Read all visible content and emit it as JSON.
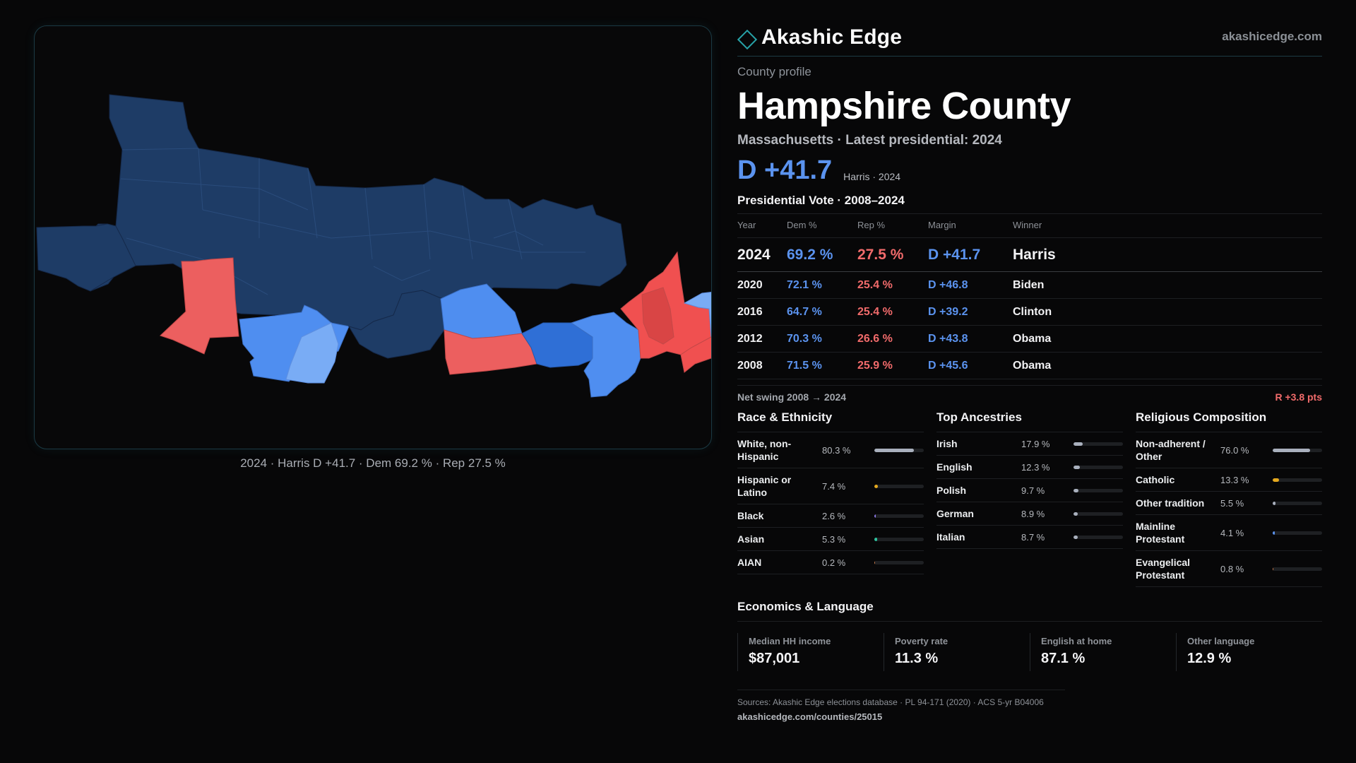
{
  "brand": {
    "name": "Akashic Edge",
    "url": "akashicedge.com",
    "accent": "#27a3a8"
  },
  "profile": {
    "eyebrow": "County profile",
    "county": "Hampshire County",
    "subline": "Massachusetts · Latest presidential: 2024",
    "headline_margin": "D +41.7",
    "headline_sub": "Harris · 2024"
  },
  "map": {
    "caption": "2024 · Harris D +41.7 · Dem 69.2 % · Rep 27.5 %",
    "colors": {
      "safe_dem": "#1e3c66",
      "likely_dem": "#2f6fd6",
      "lean_dem": "#4f8ef0",
      "tilt_dem": "#79acf5",
      "lean_rep": "#f05050",
      "likely_rep": "#ec5f5f"
    }
  },
  "votes": {
    "title": "Presidential Vote · 2008–2024",
    "headers": {
      "year": "Year",
      "dem": "Dem %",
      "rep": "Rep %",
      "margin": "Margin",
      "winner": "Winner"
    },
    "rows": [
      {
        "year": "2024",
        "dem": "69.2 %",
        "rep": "27.5 %",
        "margin": "D +41.7",
        "winner": "Harris"
      },
      {
        "year": "2020",
        "dem": "72.1 %",
        "rep": "25.4 %",
        "margin": "D +46.8",
        "winner": "Biden"
      },
      {
        "year": "2016",
        "dem": "64.7 %",
        "rep": "25.4 %",
        "margin": "D +39.2",
        "winner": "Clinton"
      },
      {
        "year": "2012",
        "dem": "70.3 %",
        "rep": "26.6 %",
        "margin": "D +43.8",
        "winner": "Obama"
      },
      {
        "year": "2008",
        "dem": "71.5 %",
        "rep": "25.9 %",
        "margin": "D +45.6",
        "winner": "Obama"
      }
    ],
    "swing_label": "Net swing 2008 → 2024",
    "swing_value": "R +3.8 pts",
    "dem_color": "#5b93ef",
    "rep_color": "#f16b6b"
  },
  "race": {
    "title": "Race & Ethnicity",
    "rows": [
      {
        "label": "White, non-Hispanic",
        "value": "80.3 %",
        "share": 0.803,
        "color": "#a9b0bd"
      },
      {
        "label": "Hispanic or Latino",
        "value": "7.4 %",
        "share": 0.074,
        "color": "#e5a91e"
      },
      {
        "label": "Black",
        "value": "2.6 %",
        "share": 0.026,
        "color": "#8c78e6"
      },
      {
        "label": "Asian",
        "value": "5.3 %",
        "share": 0.053,
        "color": "#2ec4a0"
      },
      {
        "label": "AIAN",
        "value": "0.2 %",
        "share": 0.002,
        "color": "#c97a4a"
      }
    ]
  },
  "ancestry": {
    "title": "Top Ancestries",
    "rows": [
      {
        "label": "Irish",
        "value": "17.9 %",
        "share": 0.179,
        "color": "#a9b0bd"
      },
      {
        "label": "English",
        "value": "12.3 %",
        "share": 0.123,
        "color": "#a9b0bd"
      },
      {
        "label": "Polish",
        "value": "9.7 %",
        "share": 0.097,
        "color": "#a9b0bd"
      },
      {
        "label": "German",
        "value": "8.9 %",
        "share": 0.089,
        "color": "#a9b0bd"
      },
      {
        "label": "Italian",
        "value": "8.7 %",
        "share": 0.087,
        "color": "#a9b0bd"
      }
    ]
  },
  "religion": {
    "title": "Religious Composition",
    "rows": [
      {
        "label": "Non-adherent / Other",
        "value": "76.0 %",
        "share": 0.76,
        "color": "#a9b0bd"
      },
      {
        "label": "Catholic",
        "value": "13.3 %",
        "share": 0.133,
        "color": "#e5a91e"
      },
      {
        "label": "Other tradition",
        "value": "5.5 %",
        "share": 0.055,
        "color": "#a9b0bd"
      },
      {
        "label": "Mainline Protestant",
        "value": "4.1 %",
        "share": 0.041,
        "color": "#5b93ef"
      },
      {
        "label": "Evangelical Protestant",
        "value": "0.8 %",
        "share": 0.008,
        "color": "#c97a4a"
      }
    ]
  },
  "economics": {
    "title": "Economics & Language",
    "cards": [
      {
        "label": "Median HH income",
        "value": "$87,001"
      },
      {
        "label": "Poverty rate",
        "value": "11.3 %"
      },
      {
        "label": "English at home",
        "value": "87.1 %"
      },
      {
        "label": "Other language",
        "value": "12.9 %"
      }
    ]
  },
  "footer": {
    "sources": "Sources: Akashic Edge elections database · PL 94-171 (2020) · ACS 5-yr B04006",
    "link": "akashicedge.com/counties/25015"
  }
}
